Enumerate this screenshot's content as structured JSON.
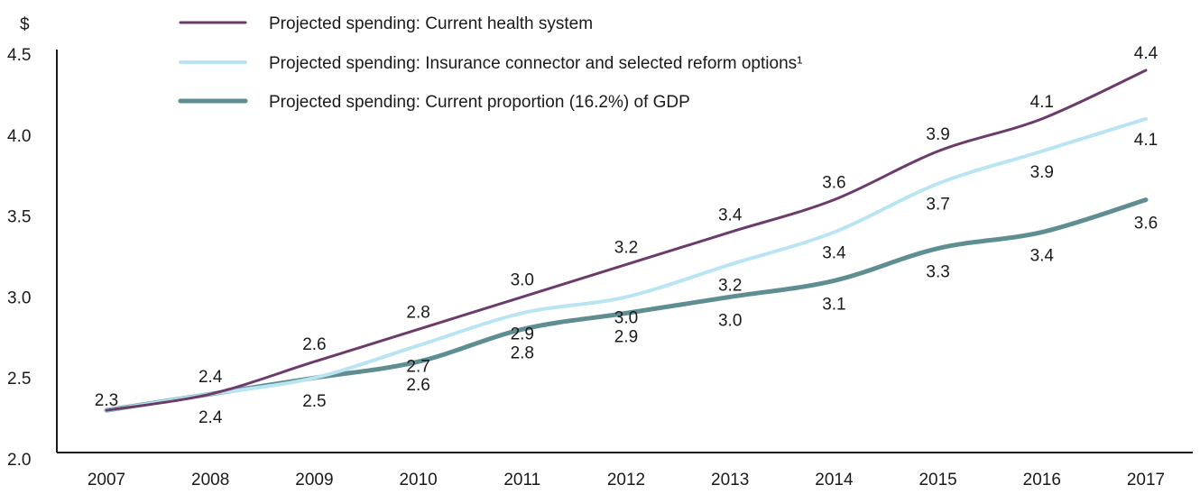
{
  "chart_data": {
    "type": "line",
    "ylabel": "$",
    "ylim": [
      2.0,
      4.5
    ],
    "yticks": [
      "2.0",
      "2.5",
      "3.0",
      "3.5",
      "4.0",
      "4.5"
    ],
    "categories": [
      "2007",
      "2008",
      "2009",
      "2010",
      "2011",
      "2012",
      "2013",
      "2014",
      "2015",
      "2016",
      "2017"
    ],
    "grid": false,
    "legend_position": "top",
    "series": [
      {
        "name": "Projected spending: Current health system",
        "color": "#6b3b6b",
        "values": [
          2.3,
          2.4,
          2.6,
          2.8,
          3.0,
          3.2,
          3.4,
          3.6,
          3.9,
          4.1,
          4.4
        ],
        "labels": [
          "2.3",
          "2.4",
          "2.6",
          "2.8",
          "3.0",
          "3.2",
          "3.4",
          "3.6",
          "3.9",
          "4.1",
          "4.4"
        ]
      },
      {
        "name": "Projected spending: Insurance connector and selected reform options¹",
        "color": "#b9e4f2",
        "values": [
          2.3,
          2.4,
          2.5,
          2.7,
          2.9,
          3.0,
          3.2,
          3.4,
          3.7,
          3.9,
          4.1
        ],
        "labels": [
          "",
          "",
          "",
          "2.7",
          "2.9",
          "3.0",
          "3.2",
          "3.4",
          "3.7",
          "3.9",
          "4.1"
        ]
      },
      {
        "name": "Projected spending: Current proportion (16.2%) of GDP",
        "color": "#5f8e92",
        "values": [
          2.3,
          2.4,
          2.5,
          2.6,
          2.8,
          2.9,
          3.0,
          3.1,
          3.3,
          3.4,
          3.6
        ],
        "labels": [
          "",
          "2.4",
          "2.5",
          "2.6",
          "2.8",
          "2.9",
          "3.0",
          "3.1",
          "3.3",
          "3.4",
          "3.6"
        ]
      }
    ]
  }
}
